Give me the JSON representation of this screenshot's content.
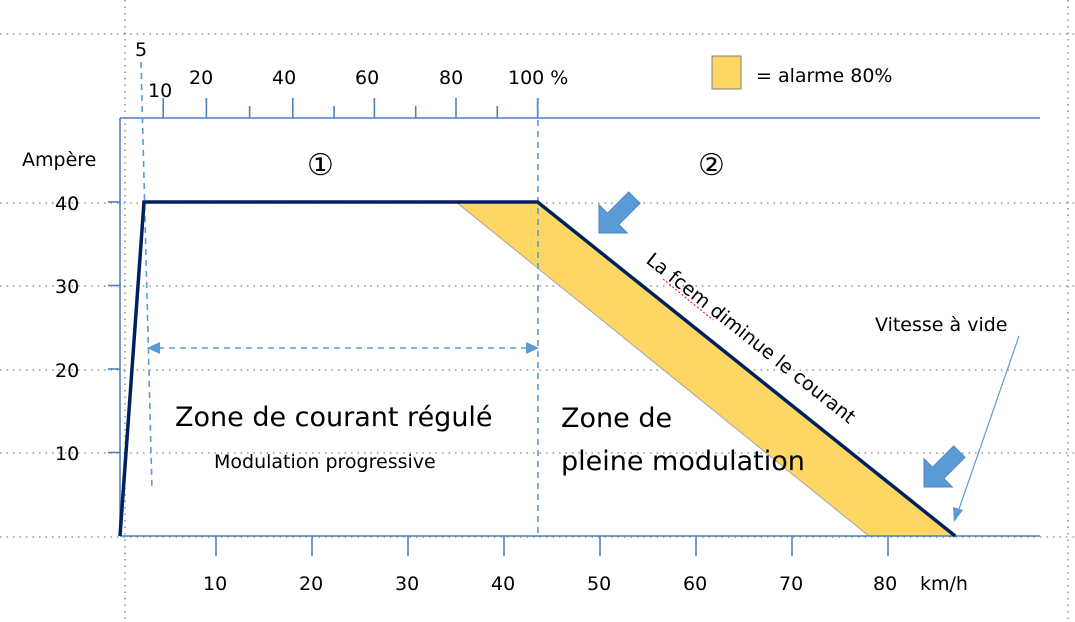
{
  "percent_axis": {
    "first_label": "5",
    "labels": [
      "10",
      "20",
      "40",
      "60",
      "80",
      "100 %"
    ]
  },
  "y_axis": {
    "title": "Ampère",
    "ticks": [
      "40",
      "30",
      "20",
      "10"
    ]
  },
  "x_axis": {
    "ticks": [
      "10",
      "20",
      "30",
      "40",
      "50",
      "60",
      "70",
      "80"
    ],
    "unit": "km/h"
  },
  "legend": {
    "label": "= alarme 80%",
    "color": "#fdd663"
  },
  "zones": {
    "zone1_marker": "①",
    "zone2_marker": "②",
    "zone1_title": "Zone de courant régulé",
    "zone1_subtitle": "Modulation progressive",
    "zone2_title_line1": "Zone de",
    "zone2_title_line2": "pleine modulation"
  },
  "annotations": {
    "slope_label": "La fcem diminue le courant",
    "no_load_label": "Vitesse à vide"
  },
  "colors": {
    "axis": "#4f81bd",
    "curve": "#002060",
    "alarm_fill": "#fdd663",
    "arrow_fill": "#5b9bd5",
    "dotted_grid": "#7f7f7f"
  },
  "icons": {
    "down-arrow": "down-left-block-arrow-icon"
  },
  "chart_data": {
    "type": "line",
    "xlabel": "km/h",
    "ylabel": "Ampère",
    "x_ticks": [
      10,
      20,
      30,
      40,
      50,
      60,
      70,
      80
    ],
    "y_ticks": [
      10,
      20,
      30,
      40
    ],
    "xlim": [
      0,
      95
    ],
    "ylim": [
      0,
      45
    ],
    "series": [
      {
        "name": "",
        "x": [
          0,
          2.5,
          43.5,
          87
        ],
        "y": [
          0,
          40,
          40,
          0
        ]
      }
    ],
    "alarm_band": {
      "upper": {
        "x": [
          35,
          43.5,
          87
        ],
        "y": [
          40,
          40,
          0
        ]
      },
      "lower": {
        "x": [
          35,
          78
        ],
        "y": [
          40,
          0
        ]
      }
    },
    "percent_axis": {
      "labels": [
        "5",
        "10",
        "20",
        "40",
        "60",
        "80",
        "100 %"
      ],
      "values_kmh": [
        2.5,
        4.5,
        9,
        18,
        26.5,
        35,
        43.5
      ]
    }
  }
}
